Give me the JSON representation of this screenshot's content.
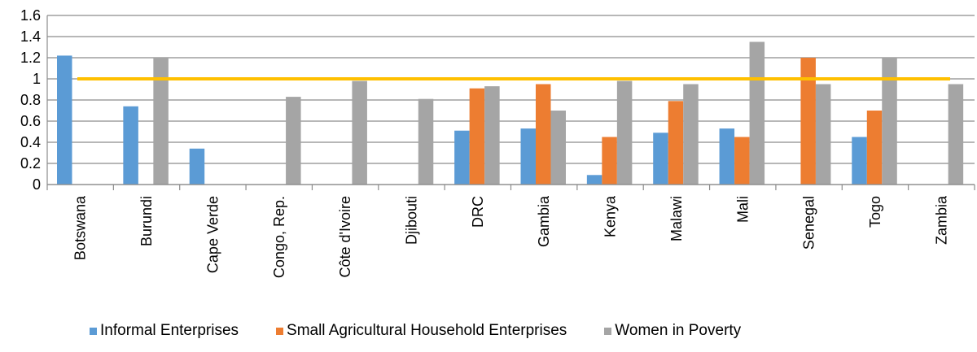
{
  "chart_data": {
    "type": "bar",
    "title": "",
    "xlabel": "",
    "ylabel": "",
    "ylim": [
      0,
      1.6
    ],
    "yticks": [
      "0",
      "0.2",
      "0.4",
      "0.6",
      "0.8",
      "1",
      "1.2",
      "1.4",
      "1.6"
    ],
    "grid": true,
    "legend_position": "bottom",
    "categories": [
      "Botswana",
      "Burundi",
      "Cape Verde",
      "Congo, Rep.",
      "Côte d'Ivoire",
      "Djibouti",
      "DRC",
      "Gambia",
      "Kenya",
      "Malawi",
      "Mali",
      "Senegal",
      "Togo",
      "Zambia"
    ],
    "series": [
      {
        "name": "Informal Enterprises",
        "color": "#5b9bd5",
        "values": [
          1.22,
          0.74,
          0.34,
          null,
          null,
          null,
          0.51,
          0.53,
          0.09,
          0.49,
          0.53,
          null,
          0.45,
          null
        ]
      },
      {
        "name": "Small Agricultural Household Enterprises",
        "color": "#ed7d31",
        "values": [
          null,
          null,
          null,
          null,
          null,
          null,
          0.91,
          0.95,
          0.45,
          0.79,
          0.45,
          1.2,
          0.7,
          null
        ]
      },
      {
        "name": "Women in Poverty",
        "color": "#a5a5a5",
        "values": [
          null,
          1.2,
          null,
          0.83,
          0.98,
          0.81,
          0.93,
          0.7,
          0.98,
          0.95,
          1.35,
          0.95,
          1.2,
          0.95
        ]
      }
    ],
    "reference_line": {
      "value": 1,
      "color": "#ffc000"
    }
  }
}
